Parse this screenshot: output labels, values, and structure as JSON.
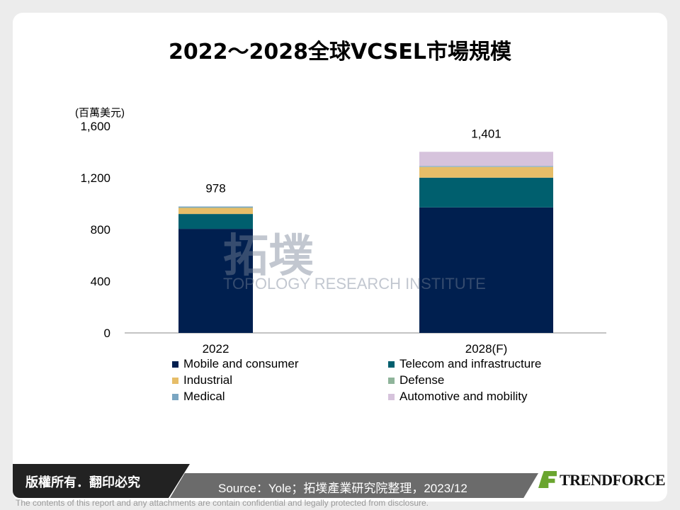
{
  "chart_data": {
    "type": "bar",
    "stacked": true,
    "title": "2022～2028全球VCSEL市場規模",
    "ylabel": "(百萬美元)",
    "ylim": [
      0,
      1600
    ],
    "yticks": [
      "0",
      "400",
      "800",
      "1,200",
      "1,600"
    ],
    "categories": [
      "2022",
      "2028(F)"
    ],
    "totals": [
      "978",
      "1,401"
    ],
    "series": [
      {
        "name": "Mobile and consumer",
        "color": "#001f4f",
        "values": [
          805,
          971
        ]
      },
      {
        "name": "Telecom and infrastructure",
        "color": "#005f6e",
        "values": [
          115,
          230
        ]
      },
      {
        "name": "Industrial",
        "color": "#e6bd68",
        "values": [
          47,
          82
        ]
      },
      {
        "name": "Defense",
        "color": "#8fb49a",
        "values": [
          3,
          3
        ]
      },
      {
        "name": "Medical",
        "color": "#7aa6c2",
        "values": [
          8,
          5
        ]
      },
      {
        "name": "Automotive and mobility",
        "color": "#d6c3dc",
        "values": [
          0,
          110
        ]
      }
    ],
    "grid": false,
    "legend": "bottom"
  },
  "footer": {
    "copyright": "版權所有．翻印必究",
    "source": "Source：Yole；拓墣產業研究院整理，2023/12",
    "logo": "TRENDFORCE",
    "disclaimer": "The contents of this report and any attachments are contain confidential and legally protected from disclosure."
  },
  "watermark": {
    "cn": "拓墣",
    "en": "TOPOLOGY RESEARCH INSTITUTE"
  }
}
